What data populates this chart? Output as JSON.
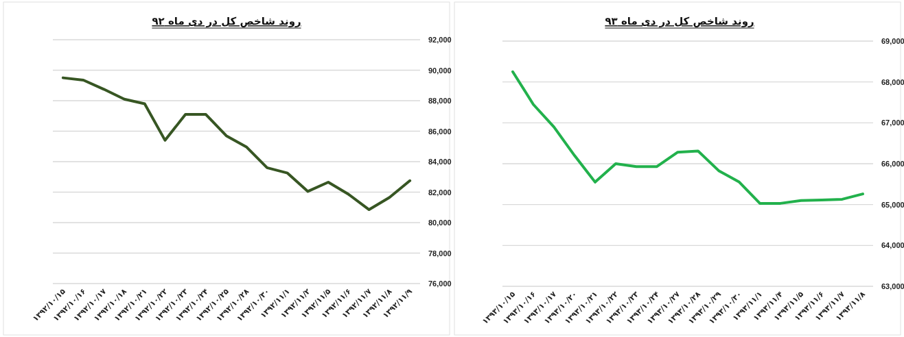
{
  "chart_data": [
    {
      "type": "line",
      "title": "روند شاخص کل در دی ماه ۹۲",
      "color": "#375623",
      "categories": [
        "۱۳۹۲/۱۰/۱۵",
        "۱۳۹۲/۱۰/۱۶",
        "۱۳۹۲/۱۰/۱۷",
        "۱۳۹۲/۱۰/۱۸",
        "۱۳۹۲/۱۰/۲۱",
        "۱۳۹۲/۱۰/۲۲",
        "۱۳۹۲/۱۰/۲۳",
        "۱۳۹۲/۱۰/۲۴",
        "۱۳۹۲/۱۰/۲۵",
        "۱۳۹۲/۱۰/۲۸",
        "۱۳۹۲/۱۰/۳۰",
        "۱۳۹۲/۱۱/۱",
        "۱۳۹۲/۱۱/۲",
        "۱۳۹۲/۱۱/۵",
        "۱۳۹۲/۱۱/۶",
        "۱۳۹۲/۱۱/۷",
        "۱۳۹۲/۱۱/۸",
        "۱۳۹۲/۱۱/۹"
      ],
      "values": [
        89500,
        89350,
        88750,
        88100,
        87800,
        85400,
        87100,
        87100,
        85700,
        84950,
        83600,
        83250,
        82050,
        82650,
        81850,
        80850,
        81650,
        82750
      ],
      "ylim": [
        76000,
        92000
      ],
      "yticks": [
        {
          "value": 76000,
          "label": "76,000"
        },
        {
          "value": 78000,
          "label": "78,000"
        },
        {
          "value": 80000,
          "label": "80,000"
        },
        {
          "value": 82000,
          "label": "82,000"
        },
        {
          "value": 84000,
          "label": "84,000"
        },
        {
          "value": 86000,
          "label": "86,000"
        },
        {
          "value": 88000,
          "label": "88,000"
        },
        {
          "value": 90000,
          "label": "90,000"
        },
        {
          "value": 92000,
          "label": "92,000"
        }
      ],
      "grid": "y"
    },
    {
      "type": "line",
      "title": "روند شاخص کل در دی ماه ۹۳",
      "color": "#22b14c",
      "categories": [
        "۱۳۹۳/۱۰/۱۵",
        "۱۳۹۳/۱۰/۱۶",
        "۱۳۹۳/۱۰/۱۷",
        "۱۳۹۳/۱۰/۲۰",
        "۱۳۹۳/۱۰/۲۱",
        "۱۳۹۳/۱۰/۲۲",
        "۱۳۹۳/۱۰/۲۳",
        "۱۳۹۳/۱۰/۲۴",
        "۱۳۹۳/۱۰/۲۷",
        "۱۳۹۳/۱۰/۲۸",
        "۱۳۹۳/۱۰/۲۹",
        "۱۳۹۳/۱۰/۳۰",
        "۱۳۹۳/۱۱/۱",
        "۱۳۹۳/۱۱/۴",
        "۱۳۹۳/۱۱/۵",
        "۱۳۹۳/۱۱/۶",
        "۱۳۹۳/۱۱/۷",
        "۱۳۹۳/۱۱/۸"
      ],
      "values": [
        68250,
        67450,
        66900,
        66200,
        65550,
        66000,
        65930,
        65930,
        66280,
        66310,
        65830,
        65550,
        65030,
        65030,
        65100,
        65110,
        65130,
        65260
      ],
      "ylim": [
        63000,
        69000
      ],
      "yticks": [
        {
          "value": 63000,
          "label": "63,000"
        },
        {
          "value": 64000,
          "label": "64,000"
        },
        {
          "value": 65000,
          "label": "65,000"
        },
        {
          "value": 66000,
          "label": "66,000"
        },
        {
          "value": 67000,
          "label": "67,000"
        },
        {
          "value": 68000,
          "label": "68,000"
        },
        {
          "value": 69000,
          "label": "69,000"
        }
      ],
      "grid": "y"
    }
  ]
}
